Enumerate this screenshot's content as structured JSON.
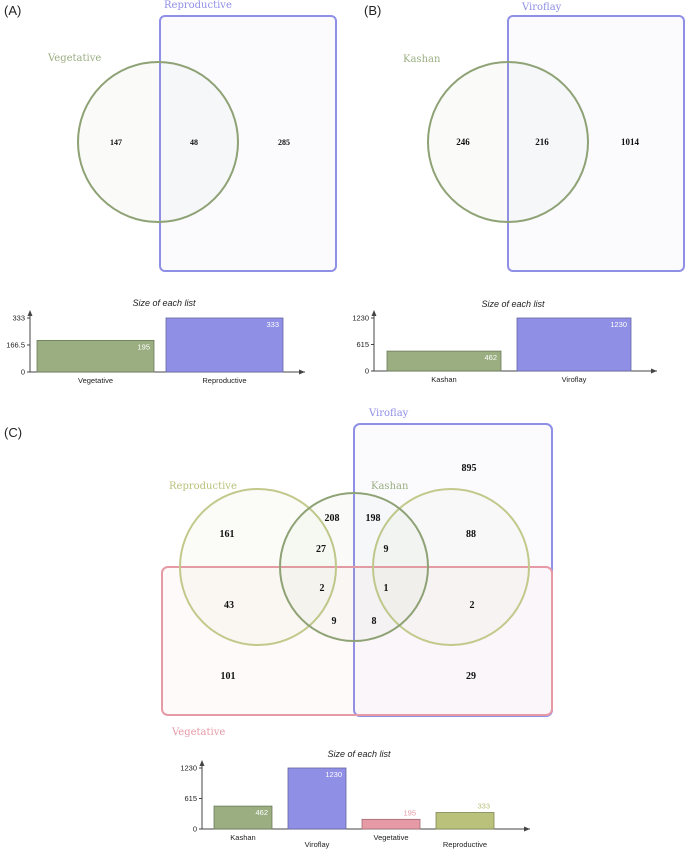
{
  "panels": {
    "a": {
      "label": "(A)",
      "sets": [
        {
          "name": "Vegetative",
          "color": "#9aae82"
        },
        {
          "name": "Reproductive",
          "color": "#8f8fe6"
        }
      ],
      "counts": {
        "vegetative_only": "147",
        "shared": "48",
        "reproductive_only": "285"
      }
    },
    "b": {
      "label": "(B)",
      "sets": [
        {
          "name": "Kashan",
          "color": "#9aae82"
        },
        {
          "name": "Viroflay",
          "color": "#8f8fe6"
        }
      ],
      "counts": {
        "kashan_only": "246",
        "shared": "216",
        "viroflay_only": "1014"
      }
    },
    "c": {
      "label": "(C)",
      "sets": [
        {
          "name": "Viroflay",
          "color": "#8f8fe6"
        },
        {
          "name": "Reproductive",
          "color": "#b9c17a"
        },
        {
          "name": "Kashan",
          "color": "#9aae82"
        },
        {
          "name": "Vegetative",
          "color": "#e69aa6"
        }
      ],
      "counts": {
        "r1": "895",
        "r2": "161",
        "r3": "208",
        "r4": "198",
        "r5": "88",
        "r6": "27",
        "r7": "9",
        "r8": "43",
        "r9": "2",
        "r10": "1",
        "r11": "2",
        "r12": "9",
        "r13": "8",
        "r14": "101",
        "r15": "29"
      }
    }
  },
  "chart_data": [
    {
      "type": "bar",
      "title": "Size of each list",
      "categories": [
        "Vegetative",
        "Reproductive"
      ],
      "values": [
        195,
        333
      ],
      "value_labels": [
        "195",
        "333"
      ],
      "colors": [
        "#9aae82",
        "#8f8fe6"
      ],
      "yticks": [
        "0",
        "166.5",
        "333"
      ],
      "ylim": [
        0,
        333
      ]
    },
    {
      "type": "bar",
      "title": "Size of each list",
      "categories": [
        "Kashan",
        "Viroflay"
      ],
      "values": [
        462,
        1230
      ],
      "value_labels": [
        "462",
        "1230"
      ],
      "colors": [
        "#9aae82",
        "#8f8fe6"
      ],
      "yticks": [
        "0",
        "615",
        "1230"
      ],
      "ylim": [
        0,
        1230
      ]
    },
    {
      "type": "bar",
      "title": "Size of each list",
      "categories": [
        "Kashan",
        "Viroflay",
        "Vegetative",
        "Reproductive"
      ],
      "values": [
        462,
        1230,
        195,
        333
      ],
      "value_labels": [
        "462",
        "1230",
        "195",
        "333"
      ],
      "colors": [
        "#9aae82",
        "#8f8fe6",
        "#e69aa6",
        "#b9c17a"
      ],
      "yticks": [
        "0",
        "615",
        "1230"
      ],
      "ylim": [
        0,
        1230
      ]
    }
  ]
}
